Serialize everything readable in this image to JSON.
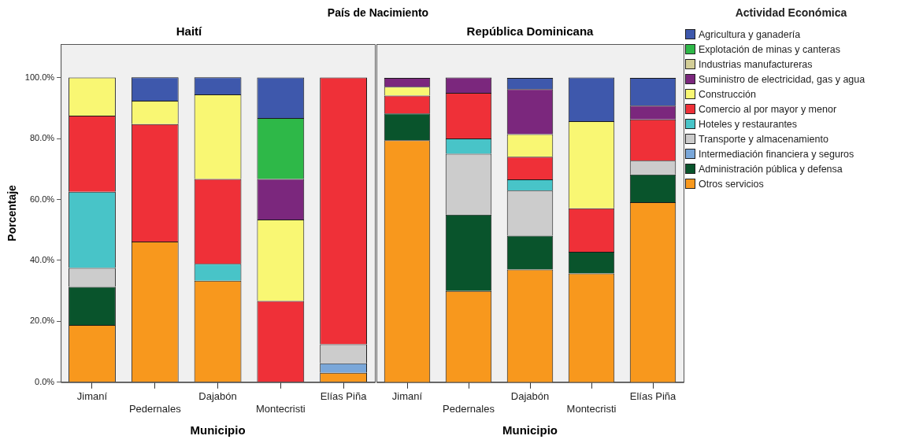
{
  "chart_data": [
    {
      "type": "bar",
      "title": "País de Nacimiento",
      "subtitle": "Haití",
      "xlabel": "Municipio",
      "ylabel": "Porcentaje",
      "stacked": true,
      "legend": "right",
      "legend_title": "Actividad Económica",
      "categories": [
        "Jimaní",
        "Pedernales",
        "Dajabón",
        "Montecristi",
        "Elías Piña"
      ],
      "ylim": [
        0,
        111
      ],
      "yticks": [
        {
          "value": 0,
          "label": "0.0%"
        },
        {
          "value": 20,
          "label": "20.0%"
        },
        {
          "value": 40,
          "label": "40.0%"
        },
        {
          "value": 60,
          "label": "60.0%"
        },
        {
          "value": 80,
          "label": "80.0%"
        },
        {
          "value": 100,
          "label": "100.0%"
        }
      ],
      "grid": false,
      "series": [
        {
          "name": "Otros servicios",
          "color": "#f8981d",
          "values": [
            18.8,
            46.2,
            33.3,
            null,
            3.1
          ]
        },
        {
          "name": "Administración pública y defensa",
          "color": "#09542c",
          "values": [
            12.5,
            null,
            null,
            null,
            null
          ]
        },
        {
          "name": "Intermediación financiera y seguros",
          "color": "#7aa7d9",
          "values": [
            null,
            null,
            null,
            null,
            3.1
          ]
        },
        {
          "name": "Transporte y almacenamiento",
          "color": "#cccccc",
          "values": [
            6.2,
            null,
            null,
            null,
            6.3
          ]
        },
        {
          "name": "Hoteles y restaurantes",
          "color": "#48c4c8",
          "values": [
            25,
            null,
            5.6,
            null,
            null
          ]
        },
        {
          "name": "Comercio al por mayor y menor",
          "color": "#ef3038",
          "values": [
            25,
            38.5,
            27.8,
            26.7,
            87.5
          ]
        },
        {
          "name": "Construcción",
          "color": "#f9f773",
          "values": [
            12.5,
            7.7,
            27.8,
            26.7,
            null
          ]
        },
        {
          "name": "Suministro de electricidad, gas y agua",
          "color": "#7b277d",
          "values": [
            null,
            null,
            null,
            13.3,
            null
          ]
        },
        {
          "name": "Industrias manufactureras",
          "color": "#d3ce97",
          "values": [
            null,
            null,
            null,
            null,
            null
          ]
        },
        {
          "name": "Explotación de minas y canteras",
          "color": "#2eb848",
          "values": [
            null,
            null,
            null,
            20,
            null
          ]
        },
        {
          "name": "Agricultura y ganadería",
          "color": "#3e58ac",
          "values": [
            null,
            7.7,
            5.6,
            13.3,
            null
          ]
        }
      ]
    },
    {
      "type": "bar",
      "subtitle": "República Dominicana",
      "xlabel": "Municipio",
      "stacked": true,
      "tick_labels": "x",
      "categories": [
        "Jimaní",
        "Pedernales",
        "Dajabón",
        "Montecristi",
        "Elías Piña"
      ],
      "ylim": [
        0,
        111
      ],
      "grid": false,
      "series": [
        {
          "color": "#f8981d",
          "values": [
            79.4,
            30,
            37,
            35.7,
            59.1
          ]
        },
        {
          "color": "#09542c",
          "values": [
            8.8,
            25,
            11.1,
            7.1,
            9.1
          ]
        },
        {
          "color": "#7aa7d9",
          "values": [
            null,
            null,
            null,
            null,
            null
          ]
        },
        {
          "color": "#cccccc",
          "values": [
            null,
            20,
            14.8,
            null,
            4.5
          ]
        },
        {
          "color": "#48c4c8",
          "values": [
            null,
            5,
            3.7,
            null,
            null
          ]
        },
        {
          "color": "#ef3038",
          "values": [
            5.9,
            15,
            7.4,
            14.3,
            13.6
          ]
        },
        {
          "color": "#f9f773",
          "values": [
            2.9,
            null,
            7.4,
            28.6,
            null
          ]
        },
        {
          "color": "#7b277d",
          "values": [
            2.9,
            5,
            14.8,
            null,
            4.5
          ]
        },
        {
          "color": "#d3ce97",
          "values": [
            null,
            null,
            null,
            null,
            null
          ]
        },
        {
          "color": "#2eb848",
          "values": [
            null,
            null,
            null,
            null,
            null
          ]
        },
        {
          "color": "#3e58ac",
          "values": [
            null,
            null,
            3.7,
            14.3,
            9.1
          ]
        }
      ]
    }
  ]
}
